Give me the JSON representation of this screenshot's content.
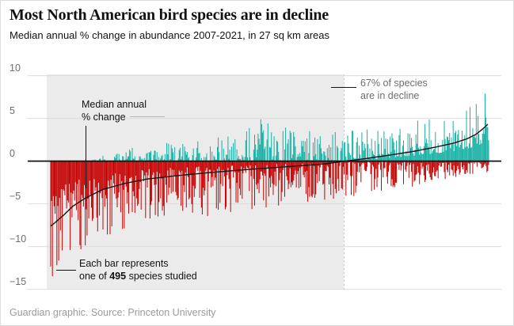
{
  "card": {
    "title": "Most North American bird species are in decline",
    "subtitle": "Median annual % change in abundance 2007-2021, in 27 sq km areas",
    "footer": "Guardian graphic. Source: Princeton University"
  },
  "annotations": {
    "median": {
      "line1": "Median annual",
      "line2": "% change"
    },
    "decline": {
      "line1": "67% of species",
      "line2": "are in decline"
    },
    "bar": {
      "line1": "Each bar represents",
      "line2_prefix": "one of ",
      "line2_bold": "495",
      "line2_suffix": " species studied"
    }
  },
  "chart_data": {
    "type": "bar",
    "title": "Most North American bird species are in decline",
    "subtitle": "Median annual % change in abundance 2007-2021, in 27 sq km areas",
    "n_species": 495,
    "decline_share": 0.67,
    "units": "median annual % change in abundance",
    "y_axis": {
      "min": -15,
      "max": 10,
      "ticks": [
        10,
        5,
        0,
        -5,
        -10,
        -15
      ],
      "tick_labels": [
        "10",
        "5",
        "0",
        "−5",
        "−10",
        "−15"
      ],
      "grid": true
    },
    "x_axis": {
      "description": "495 species sorted from largest decline to largest increase",
      "labels_shown": false
    },
    "median_pct_change_curve": [
      [
        0,
        -7.6
      ],
      [
        0.01,
        -7.2
      ],
      [
        0.03,
        -6.3
      ],
      [
        0.05,
        -5.3
      ],
      [
        0.08,
        -4.3
      ],
      [
        0.12,
        -3.3
      ],
      [
        0.17,
        -2.6
      ],
      [
        0.22,
        -2.1
      ],
      [
        0.28,
        -1.75
      ],
      [
        0.35,
        -1.4
      ],
      [
        0.42,
        -1.1
      ],
      [
        0.5,
        -0.8
      ],
      [
        0.58,
        -0.5
      ],
      [
        0.63,
        -0.3
      ],
      [
        0.67,
        -0.02
      ],
      [
        0.72,
        0.3
      ],
      [
        0.78,
        0.75
      ],
      [
        0.83,
        1.15
      ],
      [
        0.88,
        1.65
      ],
      [
        0.92,
        2.1
      ],
      [
        0.95,
        2.6
      ],
      [
        0.97,
        3.1
      ],
      [
        0.985,
        3.7
      ],
      [
        1,
        4.4
      ]
    ],
    "bar_top_envelope": [
      [
        0,
        -0.1
      ],
      [
        0.05,
        -0.05
      ],
      [
        0.1,
        0.3
      ],
      [
        0.15,
        1.2
      ],
      [
        0.2,
        1.7
      ],
      [
        0.27,
        2.2
      ],
      [
        0.35,
        2.7
      ],
      [
        0.42,
        3.1
      ],
      [
        0.48,
        4.9
      ],
      [
        0.52,
        4.2
      ],
      [
        0.57,
        3.4
      ],
      [
        0.62,
        4.3
      ],
      [
        0.67,
        3.7
      ],
      [
        0.72,
        3.9
      ],
      [
        0.78,
        4.3
      ],
      [
        0.85,
        5.8
      ],
      [
        0.9,
        5.3
      ],
      [
        0.94,
        6.3
      ],
      [
        0.97,
        7.2
      ],
      [
        1,
        8.3
      ]
    ],
    "bar_bottom_envelope": [
      [
        0,
        -13.8
      ],
      [
        0.02,
        -12.2
      ],
      [
        0.05,
        -10.8
      ],
      [
        0.1,
        -10.2
      ],
      [
        0.15,
        -8.2
      ],
      [
        0.2,
        -7.4
      ],
      [
        0.27,
        -6.5
      ],
      [
        0.35,
        -7.0
      ],
      [
        0.42,
        -6.2
      ],
      [
        0.5,
        -5.4
      ],
      [
        0.58,
        -4.9
      ],
      [
        0.65,
        -4.5
      ],
      [
        0.72,
        -3.9
      ],
      [
        0.8,
        -3.3
      ],
      [
        0.87,
        -2.5
      ],
      [
        0.93,
        -1.9
      ],
      [
        0.97,
        -1.6
      ],
      [
        1,
        -1.3
      ]
    ],
    "median_value_range": [
      -7.6,
      4.4
    ],
    "bar_value_extremes": {
      "min": -14,
      "max": 8.3
    },
    "colors": {
      "increase_teal": "#16b0a4",
      "decline_red": "#c70000",
      "median_line": "#121212",
      "zero_line": "#121212",
      "decline_panel": "#ebebeb",
      "gridline": "#dcdcdc",
      "divider_dashed": "#c9c9c9",
      "text_dark": "#121212",
      "text_gray": "#6e6e6e",
      "footer_gray": "#9b9b9b"
    },
    "seed": 1371
  }
}
